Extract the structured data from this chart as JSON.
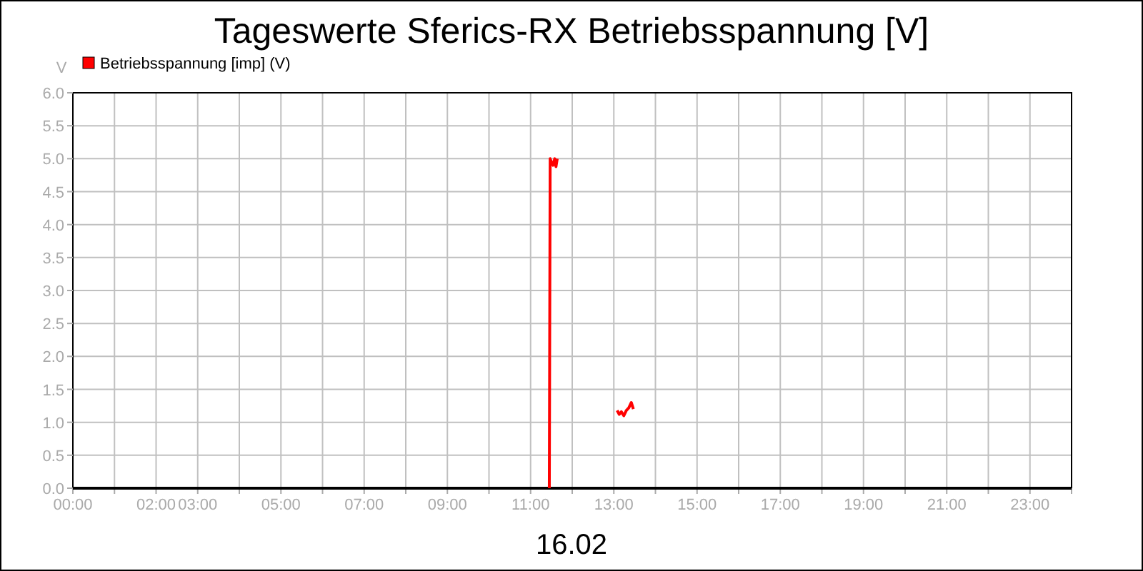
{
  "chart_data": {
    "type": "line",
    "title": "Tageswerte Sferics-RX Betriebsspannung [V]",
    "xlabel": "16.02",
    "ylabel": "V",
    "series": [
      {
        "name": "Betriebsspannung [imp] (V)",
        "color": "#ff0000",
        "x": [
          11.45,
          11.47,
          11.5,
          11.54,
          11.58,
          11.61,
          11.64
        ],
        "values": [
          0,
          5.0,
          4.95,
          4.9,
          5.0,
          4.88,
          5.0
        ]
      },
      {
        "color": "#ff0000",
        "x": [
          13.08,
          13.13,
          13.18,
          13.24,
          13.3,
          13.36,
          13.42,
          13.47
        ],
        "values": [
          1.18,
          1.12,
          1.16,
          1.1,
          1.18,
          1.22,
          1.3,
          1.2
        ]
      }
    ],
    "xlim": [
      0,
      24
    ],
    "xticks": [
      {
        "value": 0,
        "label": "00:00"
      },
      {
        "value": 1,
        "label": null
      },
      {
        "value": 2,
        "label": "02:00"
      },
      {
        "value": 3,
        "label": "03:00"
      },
      {
        "value": 4,
        "label": null
      },
      {
        "value": 5,
        "label": "05:00"
      },
      {
        "value": 6,
        "label": null
      },
      {
        "value": 7,
        "label": "07:00"
      },
      {
        "value": 8,
        "label": null
      },
      {
        "value": 9,
        "label": "09:00"
      },
      {
        "value": 10,
        "label": null
      },
      {
        "value": 11,
        "label": "11:00"
      },
      {
        "value": 12,
        "label": null
      },
      {
        "value": 13,
        "label": "13:00"
      },
      {
        "value": 14,
        "label": null
      },
      {
        "value": 15,
        "label": "15:00"
      },
      {
        "value": 16,
        "label": null
      },
      {
        "value": 17,
        "label": "17:00"
      },
      {
        "value": 18,
        "label": null
      },
      {
        "value": 19,
        "label": "19:00"
      },
      {
        "value": 20,
        "label": null
      },
      {
        "value": 21,
        "label": "21:00"
      },
      {
        "value": 22,
        "label": null
      },
      {
        "value": 23,
        "label": "23:00"
      },
      {
        "value": 24,
        "label": null
      }
    ],
    "ylim": [
      0,
      6
    ],
    "yticks": [
      {
        "value": 0,
        "label": "0.0"
      },
      {
        "value": 0.5,
        "label": "0.5"
      },
      {
        "value": 1,
        "label": "1.0"
      },
      {
        "value": 1.5,
        "label": "1.5"
      },
      {
        "value": 2,
        "label": "2.0"
      },
      {
        "value": 2.5,
        "label": "2.5"
      },
      {
        "value": 3,
        "label": "3.0"
      },
      {
        "value": 3.5,
        "label": "3.5"
      },
      {
        "value": 4,
        "label": "4.0"
      },
      {
        "value": 4.5,
        "label": "4.5"
      },
      {
        "value": 5,
        "label": "5.0"
      },
      {
        "value": 5.5,
        "label": "5.5"
      },
      {
        "value": 6,
        "label": "6.0"
      }
    ],
    "grid": true,
    "legend": "top left",
    "marker": "none",
    "line_style": "solid"
  }
}
